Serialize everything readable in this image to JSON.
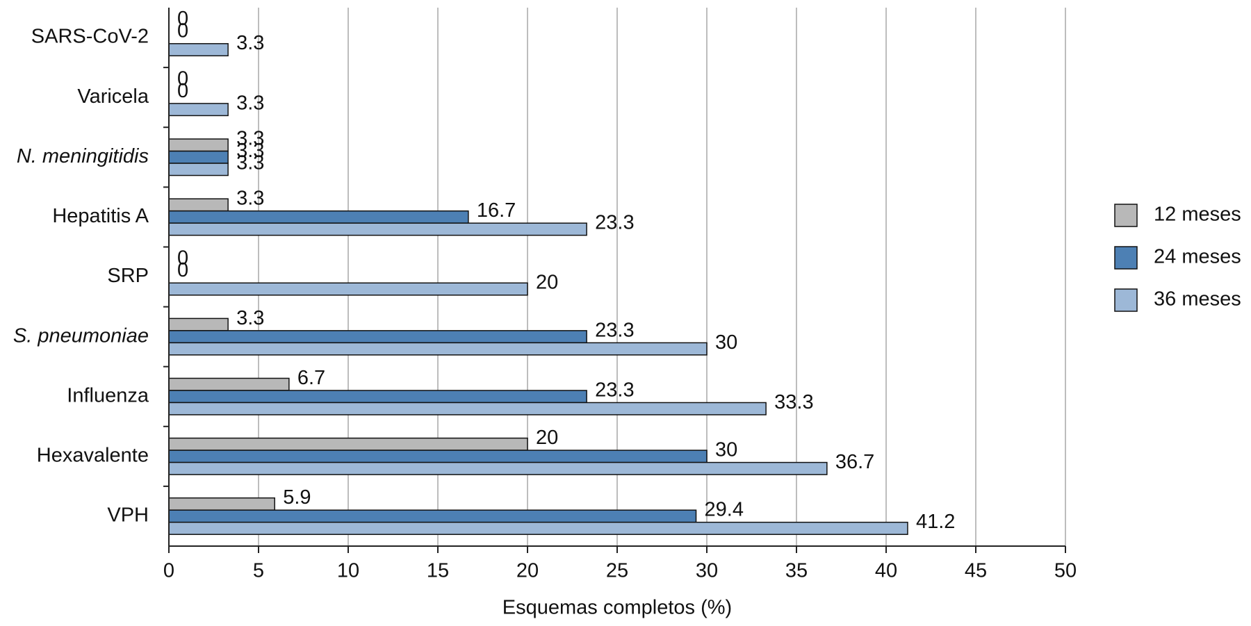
{
  "chart_data": {
    "type": "bar",
    "orientation": "horizontal",
    "categories": [
      "SARS-CoV-2",
      "Varicela",
      "N. meningitidis",
      "Hepatitis A",
      "SRP",
      "S. pneumoniae",
      "Influenza",
      "Hexavalente",
      "VPH"
    ],
    "series": [
      {
        "name": "12 meses",
        "color": "#b8b8b8",
        "values": [
          0,
          0,
          3.3,
          3.3,
          0,
          3.3,
          6.7,
          20,
          5.9
        ]
      },
      {
        "name": "24 meses",
        "color": "#4d80b4",
        "values": [
          0,
          0,
          3.3,
          16.7,
          0,
          23.3,
          23.3,
          30,
          29.4
        ]
      },
      {
        "name": "36 meses",
        "color": "#9db8d7",
        "values": [
          3.3,
          3.3,
          3.3,
          23.3,
          20,
          30,
          33.3,
          36.7,
          41.2
        ]
      }
    ],
    "xlabel": "Esquemas completos (%)",
    "xlim": [
      0,
      50
    ],
    "xticks": [
      0,
      5,
      10,
      15,
      20,
      25,
      30,
      35,
      40,
      45,
      50
    ],
    "grid": true,
    "legend": "right"
  }
}
